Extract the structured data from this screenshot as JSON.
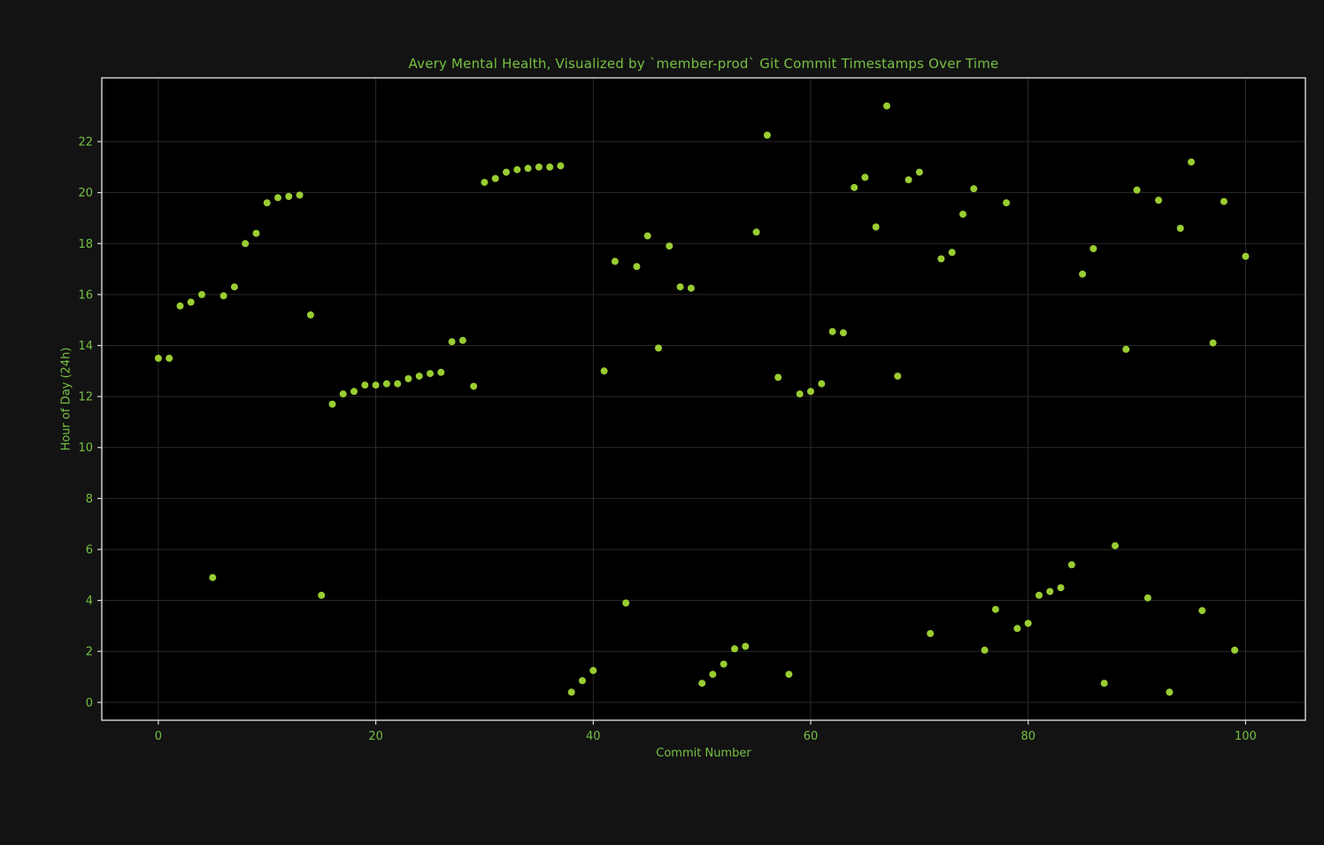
{
  "figure": {
    "title": "Avery Mental Health, Visualized by `member-prod` Git Commit Timestamps Over Time",
    "xlabel": "Commit Number",
    "ylabel": "Hour of Day (24h)"
  },
  "colors": {
    "figure_background": "#131313",
    "axes_background": "#000000",
    "text_green": "#76c043",
    "marker": "#9acd32",
    "grid": "#2b2b2b",
    "spine": "#d9d9d9"
  },
  "chart_data": {
    "type": "scatter",
    "title": "Avery Mental Health, Visualized by `member-prod` Git Commit Timestamps Over Time",
    "xlabel": "Commit Number",
    "ylabel": "Hour of Day (24h)",
    "xlim": [
      -5.2,
      105.5
    ],
    "ylim": [
      -0.7,
      24.5
    ],
    "xticks": [
      0,
      20,
      40,
      60,
      80,
      100
    ],
    "yticks": [
      0,
      2,
      4,
      6,
      8,
      10,
      12,
      14,
      16,
      18,
      20,
      22
    ],
    "grid": true,
    "legend": "none",
    "x": [
      0,
      1,
      2,
      3,
      4,
      5,
      6,
      7,
      8,
      9,
      10,
      11,
      12,
      13,
      14,
      15,
      16,
      17,
      18,
      19,
      20,
      21,
      22,
      23,
      24,
      25,
      26,
      27,
      28,
      29,
      30,
      31,
      32,
      33,
      34,
      35,
      36,
      37,
      38,
      39,
      40,
      41,
      42,
      43,
      44,
      45,
      46,
      47,
      48,
      49,
      50,
      51,
      52,
      53,
      54,
      55,
      56,
      57,
      58,
      59,
      60,
      61,
      62,
      63,
      64,
      65,
      66,
      67,
      68,
      69,
      70,
      71,
      72,
      73,
      74,
      75,
      76,
      77,
      78,
      79,
      80,
      81,
      82,
      83,
      84,
      85,
      86,
      87,
      88,
      89,
      90,
      91,
      92,
      93,
      94,
      95,
      96,
      97,
      98,
      99,
      100
    ],
    "y": [
      13.5,
      13.5,
      15.55,
      15.7,
      16.0,
      4.9,
      15.95,
      16.3,
      18.0,
      18.4,
      19.6,
      19.8,
      19.85,
      19.9,
      15.2,
      4.2,
      11.7,
      12.1,
      12.2,
      12.45,
      12.45,
      12.5,
      12.5,
      12.7,
      12.8,
      12.9,
      12.95,
      14.15,
      14.2,
      12.4,
      20.4,
      20.55,
      20.8,
      20.9,
      20.95,
      21.0,
      21.0,
      21.05,
      0.4,
      0.85,
      1.25,
      13.0,
      17.3,
      3.9,
      17.1,
      18.3,
      13.9,
      17.9,
      16.3,
      16.25,
      0.75,
      1.1,
      1.5,
      2.1,
      2.2,
      18.45,
      22.25,
      12.75,
      1.1,
      12.1,
      12.2,
      12.5,
      14.55,
      14.5,
      20.2,
      20.6,
      18.65,
      23.4,
      12.8,
      20.5,
      20.8,
      2.7,
      17.4,
      17.65,
      19.15,
      20.15,
      2.05,
      3.65,
      19.6,
      2.9,
      3.1,
      4.2,
      4.35,
      4.5,
      5.4,
      16.8,
      17.8,
      0.75,
      6.15,
      13.85,
      20.1,
      4.1,
      19.7,
      0.4,
      18.6,
      21.2,
      3.6,
      14.1,
      19.65,
      2.05,
      17.5
    ],
    "marker_color": "#9acd32",
    "marker_radius": 4
  }
}
